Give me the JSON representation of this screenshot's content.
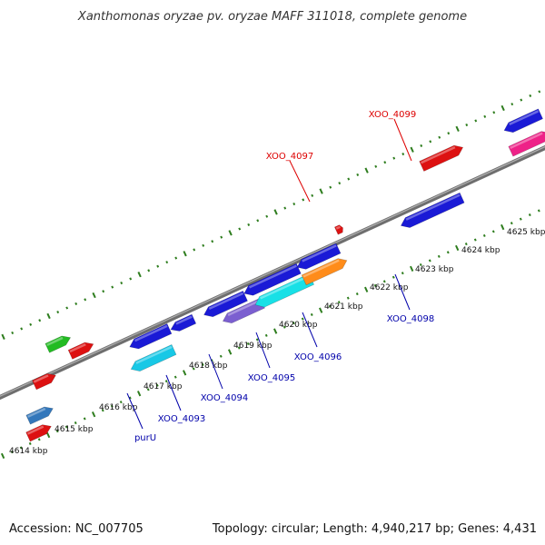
{
  "title": "Xanthomonas oryzae pv. oryzae MAFF 311018, complete genome",
  "footer": {
    "accession": "Accession: NC_007705",
    "summary": "Topology: circular; Length: 4,940,217 bp; Genes: 4,431"
  },
  "colors": {
    "backbone": "#808080",
    "tick": "#2e7d1e",
    "forward_label": "#dd0000",
    "reverse_label": "#0000aa"
  },
  "scale_ticks": [
    {
      "label": "4614 kbp",
      "kbp": 4614
    },
    {
      "label": "4615 kbp",
      "kbp": 4615
    },
    {
      "label": "4616 kbp",
      "kbp": 4616
    },
    {
      "label": "4617 kbp",
      "kbp": 4617
    },
    {
      "label": "4618 kbp",
      "kbp": 4618
    },
    {
      "label": "4619 kbp",
      "kbp": 4619
    },
    {
      "label": "4620 kbp",
      "kbp": 4620
    },
    {
      "label": "4621 kbp",
      "kbp": 4621
    },
    {
      "label": "4622 kbp",
      "kbp": 4622
    },
    {
      "label": "4623 kbp",
      "kbp": 4623
    },
    {
      "label": "4624 kbp",
      "kbp": 4624
    },
    {
      "label": "4625 kbp",
      "kbp": 4625
    }
  ],
  "gene_labels": [
    {
      "name": "XOO_4099",
      "strand": "forward"
    },
    {
      "name": "XOO_4097",
      "strand": "forward"
    },
    {
      "name": "purU",
      "strand": "reverse"
    },
    {
      "name": "XOO_4093",
      "strand": "reverse"
    },
    {
      "name": "XOO_4094",
      "strand": "reverse"
    },
    {
      "name": "XOO_4095",
      "strand": "reverse"
    },
    {
      "name": "XOO_4096",
      "strand": "reverse"
    },
    {
      "name": "XOO_4098",
      "strand": "reverse"
    }
  ]
}
